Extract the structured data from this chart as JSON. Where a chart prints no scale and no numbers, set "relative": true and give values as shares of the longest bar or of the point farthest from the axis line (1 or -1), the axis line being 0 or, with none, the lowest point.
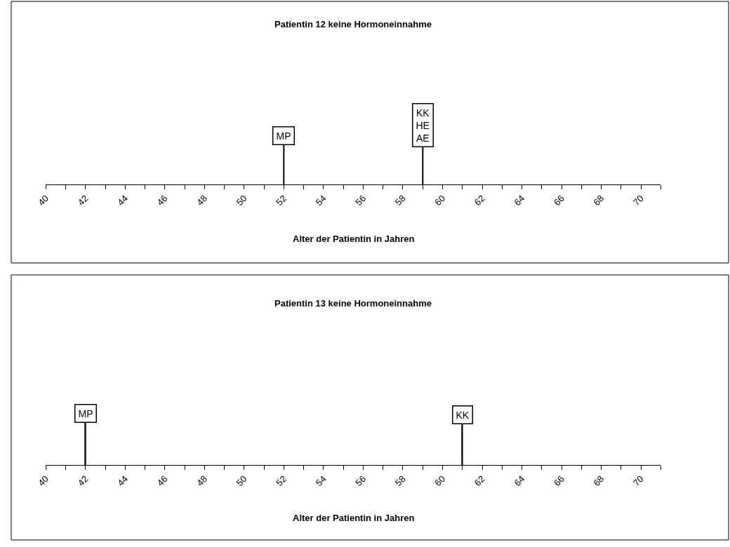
{
  "chart_data": [
    {
      "type": "bar",
      "title": "Patientin 12 keine Hormoneinnahme",
      "xlabel": "Alter der Patientin in Jahren",
      "relative": true,
      "color": "#000000",
      "x": [
        52,
        59
      ],
      "values": [
        1,
        0.95
      ],
      "annotations": [
        {
          "text": "MP",
          "x": 52,
          "y": 1
        },
        {
          "text": "KK\nHE\nAE",
          "x": 59,
          "y": 0.95
        }
      ],
      "xlim": [
        40,
        71
      ],
      "xticks": [
        40,
        {
          "value": 41,
          "label": null
        },
        42,
        {
          "value": 43,
          "label": null
        },
        44,
        {
          "value": 45,
          "label": null
        },
        46,
        {
          "value": 47,
          "label": null
        },
        48,
        {
          "value": 49,
          "label": null
        },
        50,
        {
          "value": 51,
          "label": null
        },
        52,
        {
          "value": 53,
          "label": null
        },
        54,
        {
          "value": 55,
          "label": null
        },
        56,
        {
          "value": 57,
          "label": null
        },
        58,
        {
          "value": 59,
          "label": null
        },
        60,
        {
          "value": 61,
          "label": null
        },
        62,
        {
          "value": 63,
          "label": null
        },
        64,
        {
          "value": 65,
          "label": null
        },
        66,
        {
          "value": 67,
          "label": null
        },
        68,
        {
          "value": 69,
          "label": null
        },
        70,
        {
          "value": 71,
          "label": null
        }
      ],
      "tick_labels": "x",
      "grid": false,
      "legend": false
    },
    {
      "type": "bar",
      "title": "Patientin 13 keine Hormoneinnahme",
      "xlabel": "Alter der Patientin in Jahren",
      "relative": true,
      "color": "#000000",
      "x": [
        42,
        61
      ],
      "values": [
        1,
        0.97
      ],
      "annotations": [
        {
          "text": "MP",
          "x": 42,
          "y": 1
        },
        {
          "text": "KK",
          "x": 61,
          "y": 0.97
        }
      ],
      "xlim": [
        40,
        71
      ],
      "xticks": [
        40,
        {
          "value": 41,
          "label": null
        },
        42,
        {
          "value": 43,
          "label": null
        },
        44,
        {
          "value": 45,
          "label": null
        },
        46,
        {
          "value": 47,
          "label": null
        },
        48,
        {
          "value": 49,
          "label": null
        },
        50,
        {
          "value": 51,
          "label": null
        },
        52,
        {
          "value": 53,
          "label": null
        },
        54,
        {
          "value": 55,
          "label": null
        },
        56,
        {
          "value": 57,
          "label": null
        },
        58,
        {
          "value": 59,
          "label": null
        },
        60,
        {
          "value": 61,
          "label": null
        },
        62,
        {
          "value": 63,
          "label": null
        },
        64,
        {
          "value": 65,
          "label": null
        },
        66,
        {
          "value": 67,
          "label": null
        },
        68,
        {
          "value": 69,
          "label": null
        },
        70,
        {
          "value": 71,
          "label": null
        }
      ],
      "tick_labels": "x",
      "grid": false,
      "legend": false
    }
  ]
}
